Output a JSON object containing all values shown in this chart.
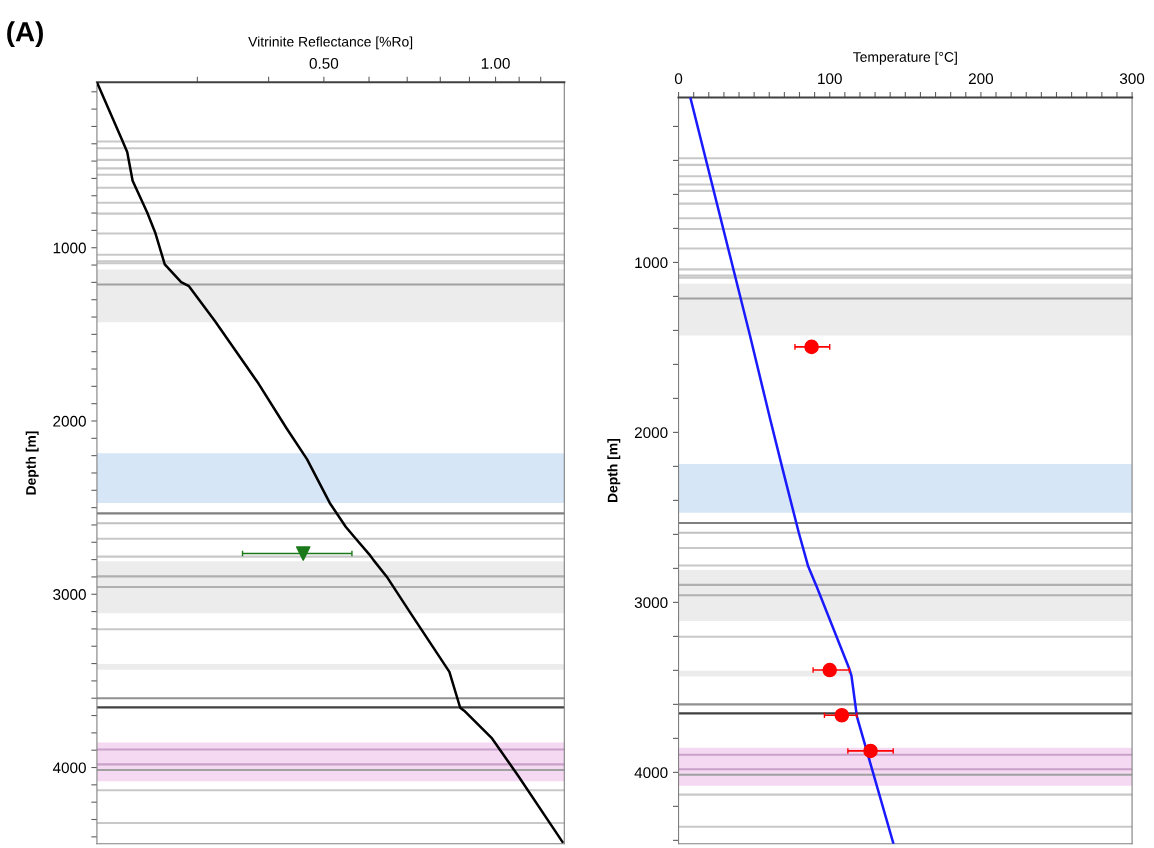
{
  "chart_data": [
    {
      "type": "line",
      "xlabel": "Vitrinite Reflectance [%Ro]",
      "ylabel": "Depth [m]",
      "annotations": [
        "(A)"
      ],
      "log": "x",
      "grid": false,
      "legend": false,
      "xlim": [
        0.2,
        1.32
      ],
      "ylim": [
        4440,
        45
      ],
      "xticks": [
        {
          "value": 0.3,
          "label": null
        },
        {
          "value": 0.4,
          "label": null
        },
        {
          "value": 0.5,
          "label": "0.50"
        },
        {
          "value": 0.6,
          "label": null
        },
        {
          "value": 0.7,
          "label": null
        },
        {
          "value": 0.8,
          "label": null
        },
        {
          "value": 0.9,
          "label": null
        },
        {
          "value": 1,
          "label": "1.00"
        },
        {
          "value": 1.1,
          "label": null
        },
        {
          "value": 1.2,
          "label": null
        }
      ],
      "yticks": [
        {
          "value": 100,
          "label": null
        },
        {
          "value": 200,
          "label": null
        },
        {
          "value": 300,
          "label": null
        },
        {
          "value": 400,
          "label": null
        },
        {
          "value": 500,
          "label": null
        },
        {
          "value": 600,
          "label": null
        },
        {
          "value": 700,
          "label": null
        },
        {
          "value": 800,
          "label": null
        },
        {
          "value": 900,
          "label": null
        },
        1000,
        {
          "value": 1100,
          "label": null
        },
        {
          "value": 1200,
          "label": null
        },
        {
          "value": 1300,
          "label": null
        },
        {
          "value": 1400,
          "label": null
        },
        {
          "value": 1500,
          "label": null
        },
        {
          "value": 1600,
          "label": null
        },
        {
          "value": 1700,
          "label": null
        },
        {
          "value": 1800,
          "label": null
        },
        {
          "value": 1900,
          "label": null
        },
        2000,
        {
          "value": 2100,
          "label": null
        },
        {
          "value": 2200,
          "label": null
        },
        {
          "value": 2300,
          "label": null
        },
        {
          "value": 2400,
          "label": null
        },
        {
          "value": 2500,
          "label": null
        },
        {
          "value": 2600,
          "label": null
        },
        {
          "value": 2700,
          "label": null
        },
        {
          "value": 2800,
          "label": null
        },
        {
          "value": 2900,
          "label": null
        },
        3000,
        {
          "value": 3100,
          "label": null
        },
        {
          "value": 3200,
          "label": null
        },
        {
          "value": 3300,
          "label": null
        },
        {
          "value": 3400,
          "label": null
        },
        {
          "value": 3500,
          "label": null
        },
        {
          "value": 3600,
          "label": null
        },
        {
          "value": 3700,
          "label": null
        },
        {
          "value": 3800,
          "label": null
        },
        {
          "value": 3900,
          "label": null
        },
        4000,
        {
          "value": 4100,
          "label": null
        },
        {
          "value": 4200,
          "label": null
        },
        {
          "value": 4300,
          "label": null
        },
        {
          "value": 4400,
          "label": null
        }
      ],
      "series": [
        {
          "type": "line",
          "color": "#000000",
          "marker": "none",
          "x": [
            0.2,
            0.221,
            0.226,
            0.231,
            0.245,
            0.253,
            0.263,
            0.281,
            0.29,
            0.322,
            0.384,
            0.43,
            0.467,
            0.512,
            0.546,
            0.564,
            0.601,
            0.611,
            0.644,
            0.71,
            0.83,
            0.867,
            0.881,
            0.986,
            1.094,
            1.31
          ],
          "values": [
            45,
            373,
            447,
            614,
            797,
            912,
            1096,
            1199,
            1222,
            1423,
            1784,
            2042,
            2220,
            2473,
            2610,
            2665,
            2771,
            2803,
            2897,
            3110,
            3448,
            3655,
            3672,
            3832,
            4045,
            4429
          ]
        },
        {
          "type": "scatter",
          "color": "#1a7a1a",
          "marker": "triangle",
          "x": [
            0.46
          ],
          "values": [
            2765
          ],
          "xerrors": [
            [
              0.36,
              0.56
            ]
          ]
        }
      ],
      "bands": [
        {
          "axis": "y",
          "from": 1126,
          "to": 1430,
          "color": "#ececec"
        },
        {
          "axis": "y",
          "from": 2186,
          "to": 2473,
          "color": "#d6e6f7"
        },
        {
          "axis": "y",
          "from": 2810,
          "to": 3110,
          "color": "#ececec"
        },
        {
          "axis": "y",
          "from": 3402,
          "to": 3436,
          "color": "#ececec"
        },
        {
          "axis": "y",
          "from": 3855,
          "to": 4079,
          "color": "#f5d9f2"
        }
      ],
      "ref_lines": [
        {
          "axis": "y",
          "value": 387,
          "color": "#c8c8c8"
        },
        {
          "axis": "y",
          "value": 426,
          "color": "#c8c8c8"
        },
        {
          "axis": "y",
          "value": 493,
          "color": "#c8c8c8"
        },
        {
          "axis": "y",
          "value": 542,
          "color": "#c8c8c8"
        },
        {
          "axis": "y",
          "value": 579,
          "color": "#c8c8c8"
        },
        {
          "axis": "y",
          "value": 654,
          "color": "#c8c8c8"
        },
        {
          "axis": "y",
          "value": 740,
          "color": "#c8c8c8"
        },
        {
          "axis": "y",
          "value": 803,
          "color": "#c8c8c8"
        },
        {
          "axis": "y",
          "value": 918,
          "color": "#c8c8c8"
        },
        {
          "axis": "y",
          "value": 1041,
          "color": "#c8c8c8"
        },
        {
          "axis": "y",
          "value": 1078,
          "color": "#c8c8c8"
        },
        {
          "axis": "y",
          "value": 1090,
          "color": "#c8c8c8"
        },
        {
          "axis": "y",
          "value": 1212,
          "color": "#a0a0a0"
        },
        {
          "axis": "y",
          "value": 2533,
          "color": "#808080"
        },
        {
          "axis": "y",
          "value": 2590,
          "color": "#c0c0c0"
        },
        {
          "axis": "y",
          "value": 2680,
          "color": "#c8c8c8"
        },
        {
          "axis": "y",
          "value": 2783,
          "color": "#c8c8c8"
        },
        {
          "axis": "y",
          "value": 2897,
          "color": "#b0b0b0"
        },
        {
          "axis": "y",
          "value": 2958,
          "color": "#b0b0b0"
        },
        {
          "axis": "y",
          "value": 3202,
          "color": "#c8c8c8"
        },
        {
          "axis": "y",
          "value": 3600,
          "color": "#909090"
        },
        {
          "axis": "y",
          "value": 3653,
          "color": "#404040"
        },
        {
          "axis": "y",
          "value": 3896,
          "color": "#c8a0c8"
        },
        {
          "axis": "y",
          "value": 3982,
          "color": "#c8a0c8"
        },
        {
          "axis": "y",
          "value": 4014,
          "color": "#a0a0a0"
        },
        {
          "axis": "y",
          "value": 4131,
          "color": "#c8c8c8"
        },
        {
          "axis": "y",
          "value": 4320,
          "color": "#c8c8c8"
        }
      ]
    },
    {
      "type": "line",
      "xlabel": "Temperature [°C]",
      "ylabel": "Depth [m]",
      "grid": false,
      "legend": false,
      "xlim": [
        0,
        300
      ],
      "ylim": [
        4420,
        30
      ],
      "xticks": [
        0,
        {
          "value": 10,
          "label": null
        },
        {
          "value": 20,
          "label": null
        },
        {
          "value": 30,
          "label": null
        },
        {
          "value": 40,
          "label": null
        },
        {
          "value": 50,
          "label": null
        },
        {
          "value": 60,
          "label": null
        },
        {
          "value": 70,
          "label": null
        },
        {
          "value": 80,
          "label": null
        },
        {
          "value": 90,
          "label": null
        },
        100,
        {
          "value": 110,
          "label": null
        },
        {
          "value": 120,
          "label": null
        },
        {
          "value": 130,
          "label": null
        },
        {
          "value": 140,
          "label": null
        },
        {
          "value": 150,
          "label": null
        },
        {
          "value": 160,
          "label": null
        },
        {
          "value": 170,
          "label": null
        },
        {
          "value": 180,
          "label": null
        },
        {
          "value": 190,
          "label": null
        },
        200,
        {
          "value": 210,
          "label": null
        },
        {
          "value": 220,
          "label": null
        },
        {
          "value": 230,
          "label": null
        },
        {
          "value": 240,
          "label": null
        },
        {
          "value": 250,
          "label": null
        },
        {
          "value": 260,
          "label": null
        },
        {
          "value": 270,
          "label": null
        },
        {
          "value": 280,
          "label": null
        },
        {
          "value": 290,
          "label": null
        },
        300
      ],
      "yticks": [
        {
          "value": 200,
          "label": null
        },
        {
          "value": 400,
          "label": null
        },
        {
          "value": 600,
          "label": null
        },
        {
          "value": 800,
          "label": null
        },
        1000,
        {
          "value": 1200,
          "label": null
        },
        {
          "value": 1400,
          "label": null
        },
        {
          "value": 1600,
          "label": null
        },
        {
          "value": 1800,
          "label": null
        },
        2000,
        {
          "value": 2200,
          "label": null
        },
        {
          "value": 2400,
          "label": null
        },
        {
          "value": 2600,
          "label": null
        },
        {
          "value": 2800,
          "label": null
        },
        3000,
        {
          "value": 3200,
          "label": null
        },
        {
          "value": 3400,
          "label": null
        },
        {
          "value": 3600,
          "label": null
        },
        {
          "value": 3800,
          "label": null
        },
        4000,
        {
          "value": 4200,
          "label": null
        },
        {
          "value": 4400,
          "label": null
        }
      ],
      "series": [
        {
          "type": "line",
          "color": "#1a1aff",
          "marker": "none",
          "x": [
            7.8,
            47,
            60.5,
            69,
            79.5,
            85.6,
            91.6,
            113,
            114.4,
            118,
            142
          ],
          "values": [
            30,
            1421,
            1918,
            2222,
            2589,
            2784,
            2912,
            3392,
            3433,
            3672,
            4415
          ]
        },
        {
          "type": "scatter",
          "color": "#ff0000",
          "marker": "circle",
          "x": [
            88,
            100,
            108,
            127
          ],
          "values": [
            1497,
            3398,
            3664,
            3874
          ],
          "xerrors": [
            [
              77,
              100
            ],
            [
              89,
              113
            ],
            [
              96.5,
              118
            ],
            [
              112,
              142
            ]
          ]
        }
      ],
      "bands": [
        {
          "axis": "y",
          "from": 1126,
          "to": 1430,
          "color": "#ececec"
        },
        {
          "axis": "y",
          "from": 2186,
          "to": 2473,
          "color": "#d6e6f7"
        },
        {
          "axis": "y",
          "from": 2810,
          "to": 3110,
          "color": "#ececec"
        },
        {
          "axis": "y",
          "from": 3402,
          "to": 3436,
          "color": "#ececec"
        },
        {
          "axis": "y",
          "from": 3855,
          "to": 4079,
          "color": "#f5d9f2"
        }
      ],
      "ref_lines": [
        {
          "axis": "y",
          "value": 387,
          "color": "#c8c8c8"
        },
        {
          "axis": "y",
          "value": 426,
          "color": "#c8c8c8"
        },
        {
          "axis": "y",
          "value": 493,
          "color": "#c8c8c8"
        },
        {
          "axis": "y",
          "value": 542,
          "color": "#c8c8c8"
        },
        {
          "axis": "y",
          "value": 579,
          "color": "#c8c8c8"
        },
        {
          "axis": "y",
          "value": 654,
          "color": "#c8c8c8"
        },
        {
          "axis": "y",
          "value": 740,
          "color": "#c8c8c8"
        },
        {
          "axis": "y",
          "value": 803,
          "color": "#c8c8c8"
        },
        {
          "axis": "y",
          "value": 918,
          "color": "#c8c8c8"
        },
        {
          "axis": "y",
          "value": 1041,
          "color": "#c8c8c8"
        },
        {
          "axis": "y",
          "value": 1078,
          "color": "#c8c8c8"
        },
        {
          "axis": "y",
          "value": 1090,
          "color": "#c8c8c8"
        },
        {
          "axis": "y",
          "value": 1212,
          "color": "#a0a0a0"
        },
        {
          "axis": "y",
          "value": 2533,
          "color": "#808080"
        },
        {
          "axis": "y",
          "value": 2590,
          "color": "#c0c0c0"
        },
        {
          "axis": "y",
          "value": 2680,
          "color": "#c8c8c8"
        },
        {
          "axis": "y",
          "value": 2783,
          "color": "#c8c8c8"
        },
        {
          "axis": "y",
          "value": 2897,
          "color": "#b0b0b0"
        },
        {
          "axis": "y",
          "value": 2958,
          "color": "#b0b0b0"
        },
        {
          "axis": "y",
          "value": 3202,
          "color": "#c8c8c8"
        },
        {
          "axis": "y",
          "value": 3600,
          "color": "#909090"
        },
        {
          "axis": "y",
          "value": 3653,
          "color": "#404040"
        },
        {
          "axis": "y",
          "value": 3896,
          "color": "#c8a0c8"
        },
        {
          "axis": "y",
          "value": 3982,
          "color": "#c8a0c8"
        },
        {
          "axis": "y",
          "value": 4014,
          "color": "#a0a0a0"
        },
        {
          "axis": "y",
          "value": 4131,
          "color": "#c8c8c8"
        },
        {
          "axis": "y",
          "value": 4320,
          "color": "#c8c8c8"
        }
      ]
    }
  ]
}
